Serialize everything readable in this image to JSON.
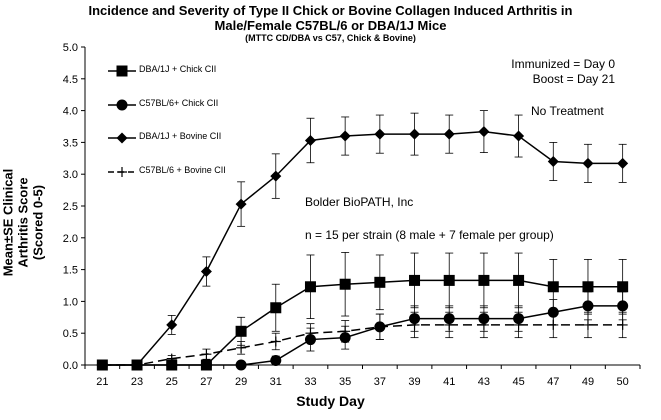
{
  "chart_data": {
    "type": "line",
    "title": "Incidence and Severity of Type II Chick or Bovine Collagen Induced Arthritis in",
    "title_line2": "Male/Female C57BL/6 or DBA/1J Mice",
    "subtitle": "(MTTC CD/DBA vs C57, Chick & Bovine)",
    "xlabel": "Study Day",
    "ylabel_line1": "Mean±SE Clinical Arthritis Score",
    "ylabel_line2": "(Scored 0-5)",
    "x_ticks": [
      "21",
      "23",
      "25",
      "27",
      "29",
      "31",
      "33",
      "35",
      "37",
      "39",
      "41",
      "43",
      "45",
      "47",
      "49",
      "50"
    ],
    "y_ticks": [
      "0.0",
      "0.5",
      "1.0",
      "1.5",
      "2.0",
      "2.5",
      "3.0",
      "3.5",
      "4.0",
      "4.5",
      "5.0"
    ],
    "ylim": [
      0,
      5
    ],
    "grid": false,
    "legend_position": "top-left",
    "annotations": {
      "immunized": "Immunized = Day 0",
      "boost": "Boost = Day 21",
      "treatment": "No Treatment",
      "company": "Bolder BioPATH, Inc",
      "n": "n = 15 per strain (8 male + 7 female per group)"
    },
    "series": [
      {
        "name": "DBA/1J + Chick CII",
        "marker": "square",
        "line": "solid",
        "values": [
          0,
          0,
          0,
          0,
          0.53,
          0.9,
          1.23,
          1.27,
          1.3,
          1.33,
          1.33,
          1.33,
          1.33,
          1.23,
          1.23,
          1.23
        ],
        "errors": [
          0,
          0,
          0,
          0,
          0.22,
          0.37,
          0.5,
          0.5,
          0.43,
          0.43,
          0.43,
          0.43,
          0.43,
          0.43,
          0.43,
          0.43
        ]
      },
      {
        "name": "C57BL/6+ Chick CII",
        "marker": "circle",
        "line": "solid",
        "values": [
          0,
          0,
          0,
          0,
          0,
          0.07,
          0.4,
          0.43,
          0.6,
          0.73,
          0.73,
          0.73,
          0.73,
          0.83,
          0.93,
          0.93
        ],
        "errors": [
          0,
          0,
          0,
          0,
          0,
          0.07,
          0.18,
          0.18,
          0.2,
          0.2,
          0.2,
          0.2,
          0.2,
          0.2,
          0.22,
          0.22
        ]
      },
      {
        "name": "DBA/1J + Bovine CII",
        "marker": "diamond",
        "line": "solid",
        "values": [
          0,
          0,
          0.63,
          1.47,
          2.53,
          2.97,
          3.53,
          3.6,
          3.63,
          3.63,
          3.63,
          3.67,
          3.6,
          3.2,
          3.17,
          3.17
        ],
        "errors": [
          0,
          0,
          0.15,
          0.23,
          0.35,
          0.35,
          0.35,
          0.3,
          0.3,
          0.33,
          0.3,
          0.33,
          0.33,
          0.3,
          0.3,
          0.3
        ]
      },
      {
        "name": "C57BL/6 + Bovine CII",
        "marker": "plus",
        "line": "dashed",
        "values": [
          0,
          0,
          0.1,
          0.17,
          0.27,
          0.37,
          0.5,
          0.53,
          0.6,
          0.63,
          0.63,
          0.63,
          0.63,
          0.63,
          0.63,
          0.63
        ],
        "errors": [
          0,
          0,
          0.05,
          0.08,
          0.1,
          0.13,
          0.15,
          0.17,
          0.2,
          0.2,
          0.2,
          0.2,
          0.2,
          0.2,
          0.2,
          0.2
        ]
      }
    ]
  }
}
